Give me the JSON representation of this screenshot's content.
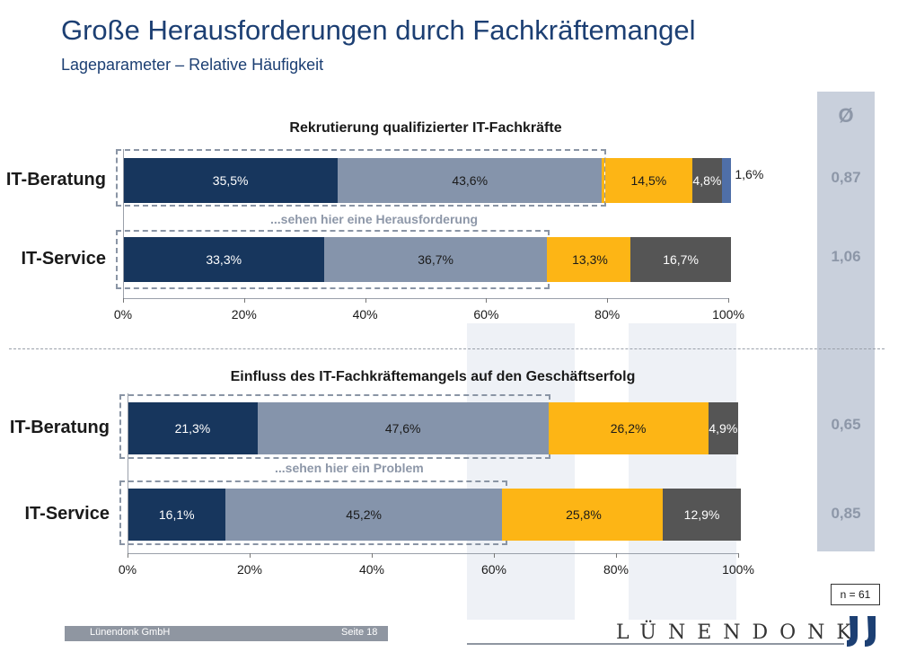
{
  "header": {
    "title": "Große Herausforderungen durch Fachkräftemangel",
    "subtitle": "Lageparameter – Relative Häufigkeit"
  },
  "avg_column": {
    "heading": "Ø"
  },
  "colors": {
    "s1": "#17365d",
    "s2": "#8594ab",
    "s3": "#fdb515",
    "s4": "#555555",
    "s5": "#4f6fa8"
  },
  "chart_data": [
    {
      "type": "bar",
      "orientation": "horizontal",
      "stacked": true,
      "title": "Rekrutierung qualifizierter IT-Fachkräfte",
      "categories": [
        "IT-Beratung",
        "IT-Service"
      ],
      "series": [
        {
          "values": [
            35.5,
            33.3
          ],
          "labels": [
            "35,5%",
            "33,3%"
          ]
        },
        {
          "values": [
            43.6,
            36.7
          ],
          "labels": [
            "43,6%",
            "36,7%"
          ]
        },
        {
          "values": [
            0.5,
            0.5
          ],
          "labels": [
            "",
            ""
          ]
        },
        {
          "values": [
            14.5,
            13.3
          ],
          "labels": [
            "14,5%",
            "13,3%"
          ]
        },
        {
          "values": [
            4.8,
            16.7
          ],
          "labels": [
            "4,8%",
            "16,7%"
          ]
        },
        {
          "values": [
            1.6,
            0
          ],
          "labels": [
            "1,6%",
            ""
          ]
        }
      ],
      "averages": [
        "0,87",
        "1,06"
      ],
      "highlight_note": "...sehen hier eine Herausforderung",
      "xlim": [
        0,
        100
      ],
      "ticks": [
        "0%",
        "20%",
        "40%",
        "60%",
        "80%",
        "100%"
      ]
    },
    {
      "type": "bar",
      "orientation": "horizontal",
      "stacked": true,
      "title": "Einfluss des IT-Fachkräftemangels auf den Geschäftserfolg",
      "categories": [
        "IT-Beratung",
        "IT-Service"
      ],
      "series": [
        {
          "values": [
            21.3,
            16.1
          ],
          "labels": [
            "21,3%",
            "16,1%"
          ]
        },
        {
          "values": [
            47.6,
            45.2
          ],
          "labels": [
            "47,6%",
            "45,2%"
          ]
        },
        {
          "values": [
            0,
            0.5
          ],
          "labels": [
            "",
            ""
          ]
        },
        {
          "values": [
            26.2,
            25.8
          ],
          "labels": [
            "26,2%",
            "25,8%"
          ]
        },
        {
          "values": [
            4.9,
            12.9
          ],
          "labels": [
            "4,9%",
            "12,9%"
          ]
        },
        {
          "values": [
            0,
            0
          ],
          "labels": [
            "",
            ""
          ]
        }
      ],
      "averages": [
        "0,65",
        "0,85"
      ],
      "highlight_note": "...sehen hier ein Problem",
      "xlim": [
        0,
        100
      ],
      "ticks": [
        "0%",
        "20%",
        "40%",
        "60%",
        "80%",
        "100%"
      ]
    }
  ],
  "sample_note": "n = 61",
  "footer": {
    "company": "Lünendonk GmbH",
    "page": "Seite 18",
    "logo": "LÜNENDONK"
  }
}
